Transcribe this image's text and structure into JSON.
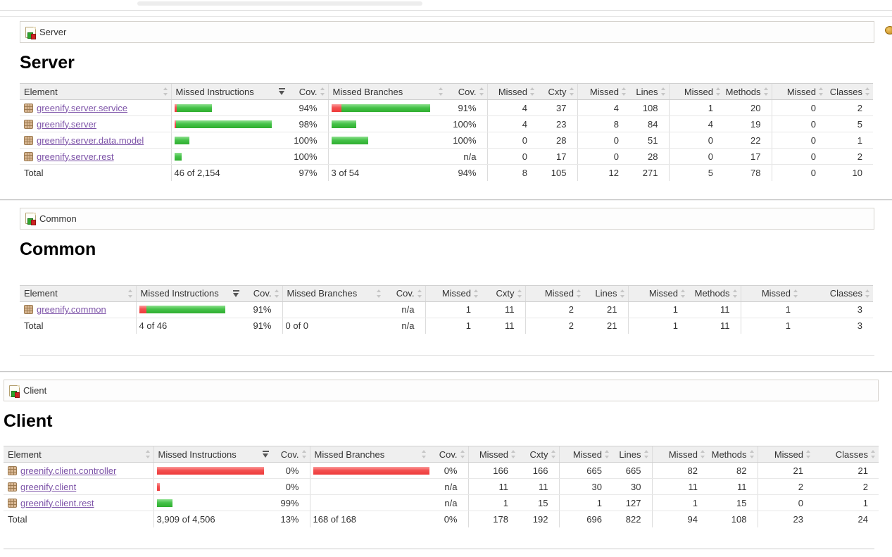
{
  "headers": {
    "element": "Element",
    "missed_instructions": "Missed Instructions",
    "cov": "Cov.",
    "missed_branches": "Missed Branches",
    "missed": "Missed",
    "cxty": "Cxty",
    "lines": "Lines",
    "methods": "Methods",
    "classes": "Classes"
  },
  "colors": {
    "bar_green": "#2fae2f",
    "bar_red": "#ee3b3b",
    "link_purple": "#7d53a8",
    "header_bg": "#efefef",
    "session_icon_gold": "#cf9426"
  },
  "sort_state": {
    "sorted_column": "Missed Instructions",
    "direction": "desc"
  },
  "sections": [
    {
      "breadcrumb": "Server",
      "title": "Server",
      "table": {
        "rows": [
          {
            "element": "greenify.server.service",
            "mi_bar": {
              "red": 3,
              "green": 50
            },
            "mi_cov": "94%",
            "mb_bar": {
              "red": 14,
              "green": 126
            },
            "mb_cov": "91%",
            "values": [
              "4",
              "37",
              "4",
              "108",
              "1",
              "20",
              "0",
              "2"
            ]
          },
          {
            "element": "greenify.server",
            "mi_bar": {
              "red": 2,
              "green": 136
            },
            "mi_cov": "98%",
            "mb_bar": {
              "red": 0,
              "green": 35
            },
            "mb_cov": "100%",
            "values": [
              "4",
              "23",
              "8",
              "84",
              "4",
              "19",
              "0",
              "5"
            ]
          },
          {
            "element": "greenify.server.data.model",
            "mi_bar": {
              "red": 0,
              "green": 21
            },
            "mi_cov": "100%",
            "mb_bar": {
              "red": 0,
              "green": 52
            },
            "mb_cov": "100%",
            "values": [
              "0",
              "28",
              "0",
              "51",
              "0",
              "22",
              "0",
              "1"
            ]
          },
          {
            "element": "greenify.server.rest",
            "mi_bar": {
              "red": 0,
              "green": 10
            },
            "mi_cov": "100%",
            "mb_bar": null,
            "mb_cov": "n/a",
            "values": [
              "0",
              "17",
              "0",
              "28",
              "0",
              "17",
              "0",
              "2"
            ]
          }
        ],
        "total": {
          "label": "Total",
          "mi": "46 of 2,154",
          "mi_cov": "97%",
          "mb": "3 of 54",
          "mb_cov": "94%",
          "values": [
            "8",
            "105",
            "12",
            "271",
            "5",
            "78",
            "0",
            "10"
          ]
        }
      }
    },
    {
      "breadcrumb": "Common",
      "title": "Common",
      "table": {
        "rows": [
          {
            "element": "greenify.common",
            "mi_bar": {
              "red": 10,
              "green": 112
            },
            "mi_cov": "91%",
            "mb_bar": null,
            "mb_cov": "n/a",
            "values": [
              "1",
              "11",
              "2",
              "21",
              "1",
              "11",
              "1",
              "3"
            ]
          }
        ],
        "total": {
          "label": "Total",
          "mi": "4 of 46",
          "mi_cov": "91%",
          "mb": "0 of 0",
          "mb_cov": "n/a",
          "values": [
            "1",
            "11",
            "2",
            "21",
            "1",
            "11",
            "1",
            "3"
          ]
        }
      }
    },
    {
      "breadcrumb": "Client",
      "title": "Client",
      "table": {
        "rows": [
          {
            "element": "greenify.client.controller",
            "mi_bar": {
              "red": 152,
              "green": 0
            },
            "mi_cov": "0%",
            "mb_bar": {
              "red": 168,
              "green": 0
            },
            "mb_cov": "0%",
            "values": [
              "166",
              "166",
              "665",
              "665",
              "82",
              "82",
              "21",
              "21"
            ]
          },
          {
            "element": "greenify.client",
            "mi_bar": {
              "red": 4,
              "green": 0
            },
            "mi_cov": "0%",
            "mb_bar": null,
            "mb_cov": "n/a",
            "values": [
              "11",
              "11",
              "30",
              "30",
              "11",
              "11",
              "2",
              "2"
            ]
          },
          {
            "element": "greenify.client.rest",
            "mi_bar": {
              "red": 0,
              "green": 22
            },
            "mi_cov": "99%",
            "mb_bar": null,
            "mb_cov": "n/a",
            "values": [
              "1",
              "15",
              "1",
              "127",
              "1",
              "15",
              "0",
              "1"
            ]
          }
        ],
        "total": {
          "label": "Total",
          "mi": "3,909 of 4,506",
          "mi_cov": "13%",
          "mb": "168 of 168",
          "mb_cov": "0%",
          "values": [
            "178",
            "192",
            "696",
            "822",
            "94",
            "108",
            "23",
            "24"
          ]
        }
      }
    }
  ]
}
